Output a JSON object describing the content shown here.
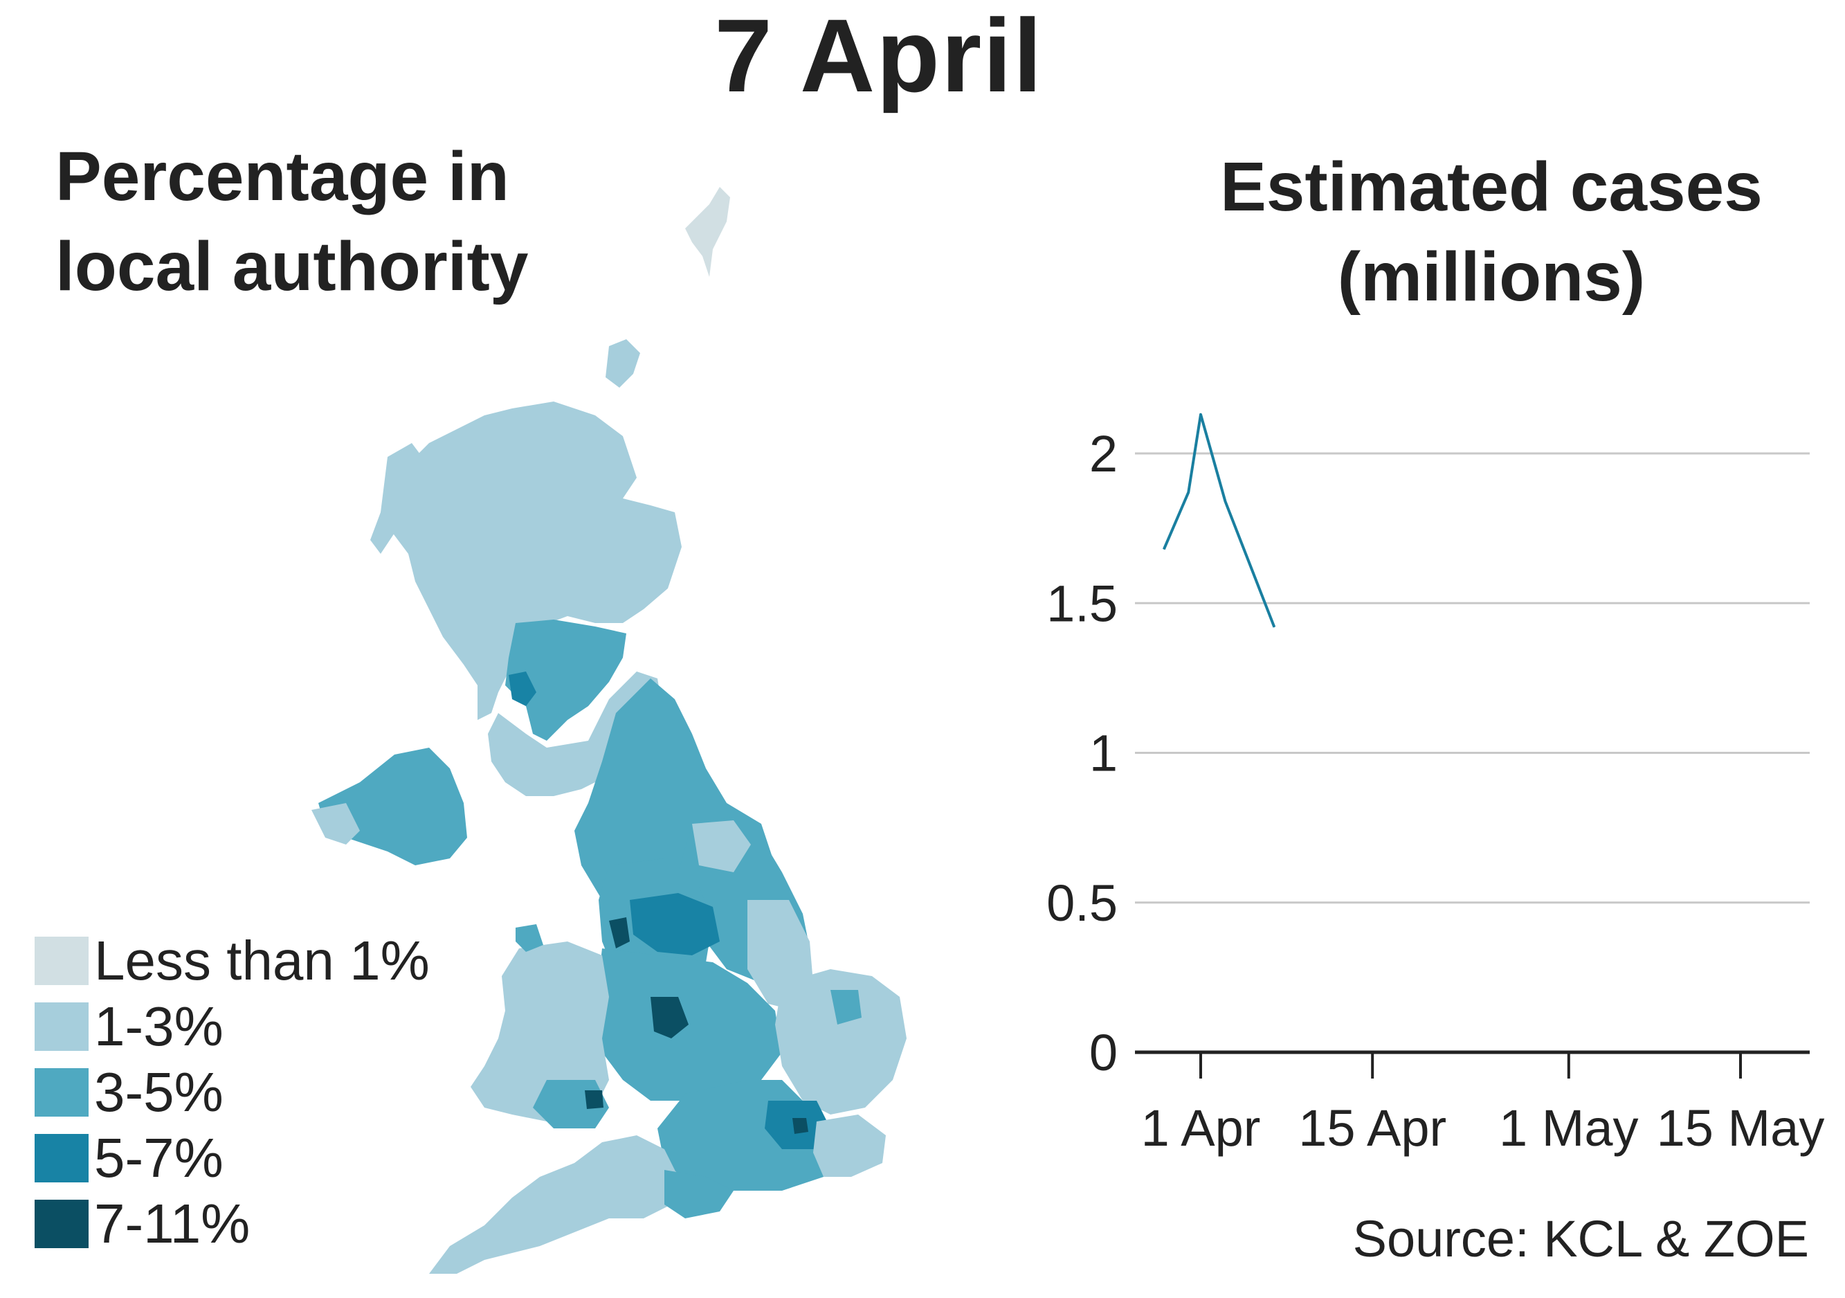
{
  "title": "7 April",
  "map": {
    "title_line1": "Percentage in",
    "title_line2": "local authority",
    "legend": [
      {
        "label": "Less than 1%",
        "color": "#d1dfe3"
      },
      {
        "label": "1-3%",
        "color": "#a6cedc"
      },
      {
        "label": "3-5%",
        "color": "#4fa9c1"
      },
      {
        "label": "5-7%",
        "color": "#1883a5"
      },
      {
        "label": "7-11%",
        "color": "#0b4f63"
      }
    ]
  },
  "chart_data": {
    "type": "line",
    "title": "Estimated cases (millions)",
    "title_line1": "Estimated cases",
    "title_line2": "(millions)",
    "xlabel": "",
    "ylabel": "",
    "x_ticks": [
      "1 Apr",
      "15 Apr",
      "1 May",
      "15 May"
    ],
    "x_tick_days": [
      0,
      14,
      30,
      44
    ],
    "xlim_days": [
      -5,
      51
    ],
    "ylim": [
      0,
      2.2
    ],
    "y_ticks": [
      "0",
      "0.5",
      "1",
      "1.5",
      "2"
    ],
    "y_tick_values": [
      0,
      0.5,
      1,
      1.5,
      2
    ],
    "grid": true,
    "series": [
      {
        "color": "#1a7fa0",
        "x": [
          "29 Mar",
          "31 Mar",
          "1 Apr",
          "3 Apr",
          "5 Apr",
          "7 Apr"
        ],
        "x_days": [
          -3,
          -1,
          0,
          2,
          4,
          6
        ],
        "values": [
          1.68,
          1.87,
          2.13,
          1.84,
          1.63,
          1.42
        ]
      }
    ]
  },
  "source": "Source: KCL & ZOE",
  "colors": {
    "text": "#222222",
    "grid": "#c8c8c8",
    "axis": "#222222",
    "line": "#1a7fa0"
  }
}
